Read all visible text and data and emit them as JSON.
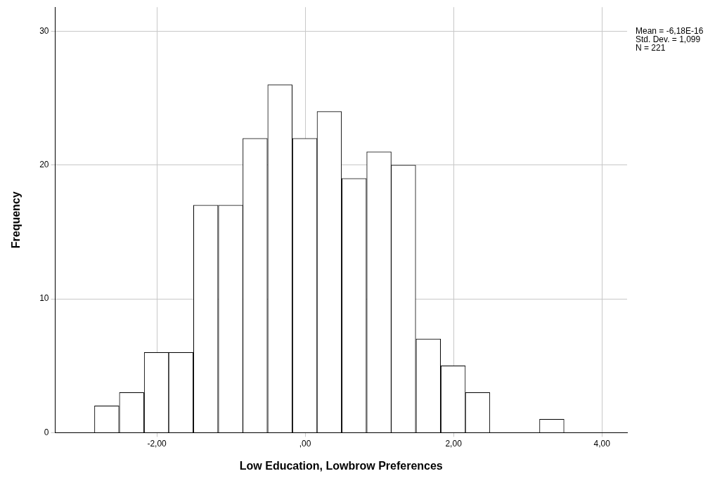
{
  "chart_data": {
    "type": "histogram",
    "xlabel": "Low Education, Lowbrow Preferences",
    "ylabel": "Frequency",
    "bins": [
      -2.84,
      -2.51,
      -2.17,
      -1.84,
      -1.51,
      -1.17,
      -0.84,
      -0.51,
      -0.17,
      0.16,
      0.49,
      0.83,
      1.16,
      1.49,
      1.83,
      2.16,
      2.49,
      3.16,
      3.49
    ],
    "values": [
      2,
      3,
      6,
      6,
      17,
      17,
      22,
      26,
      22,
      24,
      19,
      21,
      20,
      7,
      5,
      3,
      0,
      1
    ],
    "color": "#ffffff",
    "xlim": [
      -3.37,
      4.34
    ],
    "xticks": [
      {
        "value": -2,
        "label": "-2,00"
      },
      {
        "value": 0,
        "label": ",00"
      },
      {
        "value": 2,
        "label": "2,00"
      },
      {
        "value": 4,
        "label": "4,00"
      }
    ],
    "ylim": [
      0,
      31.8
    ],
    "yticks": [
      0,
      10,
      20,
      30
    ],
    "grid": true,
    "legend": false,
    "annotations": [
      "Mean = -6,18E-16",
      "Std. Dev. = 1,099",
      "N = 221"
    ]
  }
}
